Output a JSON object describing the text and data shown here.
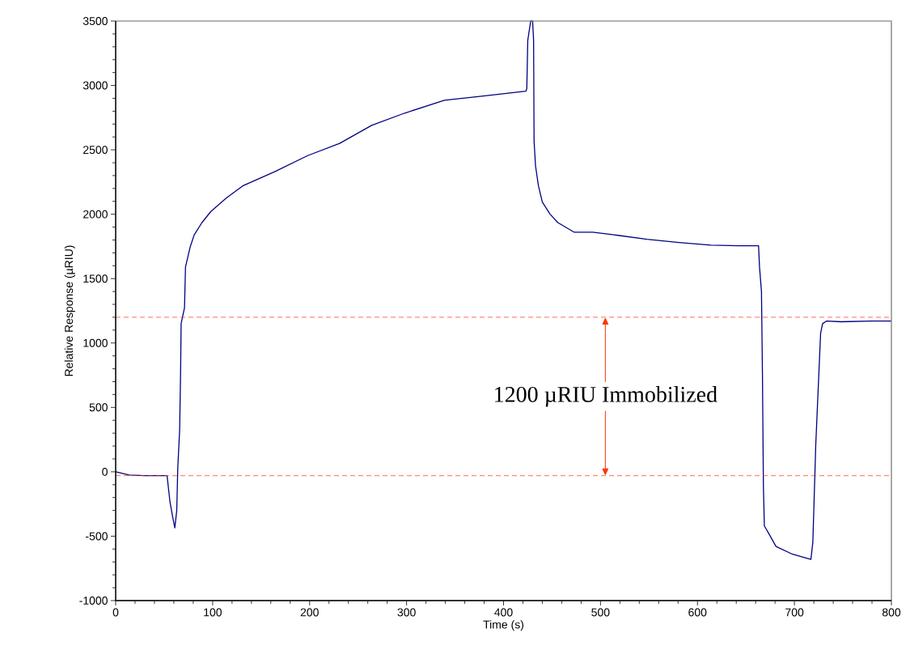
{
  "chart_data": {
    "type": "line",
    "xlabel": "Time (s)",
    "ylabel": "Relative Response (µRIU)",
    "xlim": [
      0,
      800
    ],
    "xticks": [
      0,
      100,
      200,
      300,
      400,
      500,
      600,
      700,
      800
    ],
    "ylim": [
      -1000,
      3500
    ],
    "yticks": [
      -1000,
      -500,
      0,
      500,
      1000,
      1500,
      2000,
      2500,
      3000,
      3500
    ],
    "grid": false,
    "marker": "none",
    "line_style": "solid",
    "series": [
      {
        "color": "#000080",
        "x": [
          0,
          14,
          30,
          53,
          56,
          59,
          61,
          63,
          64,
          66,
          67,
          67.5,
          71,
          72,
          77,
          81,
          89,
          98,
          114,
          131,
          164,
          198,
          231,
          264,
          298,
          339,
          381,
          423,
          424,
          425,
          428,
          430,
          431,
          431.5,
          433,
          436,
          440,
          448,
          456,
          473,
          492,
          514,
          548,
          581,
          614,
          643,
          663,
          664,
          666,
          667,
          668,
          669,
          674,
          681,
          698,
          717,
          719,
          722,
          727,
          729,
          733,
          748,
          780,
          800
        ],
        "values": [
          0,
          -25,
          -30,
          -30,
          -233,
          -360,
          -435,
          -300,
          20,
          330,
          800,
          1150,
          1275,
          1590,
          1750,
          1840,
          1935,
          2020,
          2125,
          2220,
          2330,
          2455,
          2550,
          2690,
          2785,
          2885,
          2920,
          2955,
          2975,
          3350,
          3500,
          3500,
          3350,
          2565,
          2375,
          2220,
          2095,
          2000,
          1935,
          1860,
          1860,
          1840,
          1805,
          1780,
          1760,
          1755,
          1755,
          1590,
          1400,
          775,
          -110,
          -420,
          -485,
          -580,
          -640,
          -680,
          -545,
          210,
          1075,
          1150,
          1170,
          1165,
          1170,
          1170
        ]
      }
    ],
    "ref_lines": [
      {
        "axis": "y",
        "value": 1200,
        "color": "#ff3300",
        "line_style": "dashed"
      },
      {
        "axis": "y",
        "value": -30,
        "color": "#ff3300",
        "line_style": "dashed"
      }
    ],
    "annotations": [
      {
        "text": "1200 µRIU Immobilized",
        "x": 505,
        "y": 1200
      }
    ]
  }
}
